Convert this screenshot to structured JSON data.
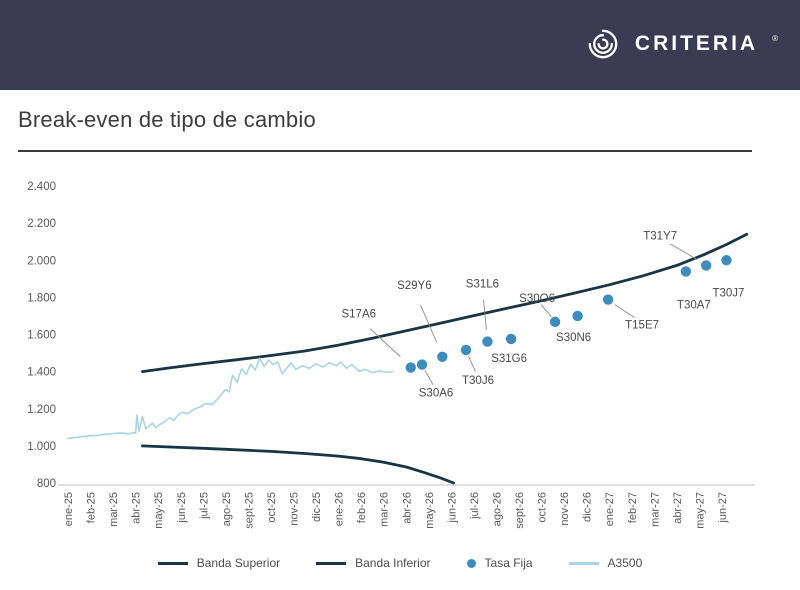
{
  "header": {
    "brand": "CRITERIA",
    "brand_mark": "®"
  },
  "theme": {
    "header_bg": "#3b3b54",
    "title_color": "#3d3d3d",
    "divider_color": "#3a3a3a",
    "axis_label_color": "#595959",
    "annotation_color": "#4a4a4a",
    "legend_text_color": "#4c4c4c"
  },
  "chart_data": {
    "type": "line",
    "title": "Break-even de tipo de cambio",
    "ylim": [
      800,
      2400
    ],
    "ytick_step": 200,
    "grid": false,
    "legend_position": "bottom",
    "x_unit": "month_index",
    "x_categories": [
      "ene-25",
      "feb-25",
      "mar-25",
      "abr-25",
      "may-25",
      "jun-25",
      "jul-25",
      "ago-25",
      "sept-25",
      "oct-25",
      "nov-25",
      "dic-25",
      "ene-26",
      "feb-26",
      "mar-26",
      "abr-26",
      "may-26",
      "jun-26",
      "jul-26",
      "ago-26",
      "sept-26",
      "oct-26",
      "nov-26",
      "dic-26",
      "ene-27",
      "feb-27",
      "mar-27",
      "abr-27",
      "may-27",
      "jun-27"
    ],
    "colors": {
      "band": "#183545",
      "dots": "#3e8cbc",
      "a3500": "#a9d4e6",
      "axis": "#c0c0c0",
      "leader": "#8c8c8c"
    },
    "series": [
      {
        "name": "Banda Superior",
        "type": "line",
        "color": "#183545",
        "width": 2.8,
        "points": [
          [
            3.3,
            1400
          ],
          [
            4.5,
            1420
          ],
          [
            6,
            1443
          ],
          [
            7.5,
            1464
          ],
          [
            9,
            1487
          ],
          [
            10.5,
            1511
          ],
          [
            12,
            1543
          ],
          [
            13.5,
            1580
          ],
          [
            15,
            1620
          ],
          [
            16.5,
            1661
          ],
          [
            18,
            1702
          ],
          [
            19.5,
            1742
          ],
          [
            21,
            1782
          ],
          [
            22.5,
            1824
          ],
          [
            24,
            1868
          ],
          [
            25.5,
            1916
          ],
          [
            27,
            1972
          ],
          [
            28.2,
            2030
          ],
          [
            29.2,
            2085
          ],
          [
            30.1,
            2140
          ]
        ]
      },
      {
        "name": "Banda Inferior",
        "type": "line",
        "color": "#183545",
        "width": 2.8,
        "points": [
          [
            3.3,
            1000
          ],
          [
            4.5,
            994
          ],
          [
            6,
            987
          ],
          [
            7.5,
            979
          ],
          [
            9,
            970
          ],
          [
            10.5,
            959
          ],
          [
            12,
            945
          ],
          [
            13,
            931
          ],
          [
            14,
            912
          ],
          [
            15,
            886
          ],
          [
            15.8,
            856
          ],
          [
            16.5,
            828
          ],
          [
            17.1,
            800
          ]
        ]
      },
      {
        "name": "Tasa Fija",
        "type": "scatter",
        "color": "#3e8cbc",
        "points": [
          {
            "label": "S17A6",
            "x": 15.2,
            "v": 1422,
            "dx": -52,
            "dy": -54,
            "leader": true
          },
          {
            "label": "S30A6",
            "x": 15.7,
            "v": 1438,
            "dx": 14,
            "dy": 28,
            "leader": true
          },
          {
            "label": "S29Y6",
            "x": 16.6,
            "v": 1480,
            "dx": -28,
            "dy": -72,
            "leader": true
          },
          {
            "label": "T30J6",
            "x": 17.65,
            "v": 1517,
            "dx": 12,
            "dy": 30,
            "leader": true
          },
          {
            "label": "S31L6",
            "x": 18.6,
            "v": 1562,
            "dx": -5,
            "dy": -58,
            "leader": true
          },
          {
            "label": "S31G6",
            "x": 19.65,
            "v": 1576,
            "dx": -2,
            "dy": 19,
            "leader": false
          },
          {
            "label": "S30O6",
            "x": 21.6,
            "v": 1668,
            "dx": -18,
            "dy": -24,
            "leader": true
          },
          {
            "label": "S30N6",
            "x": 22.6,
            "v": 1700,
            "dx": -4,
            "dy": 21,
            "leader": false
          },
          {
            "label": "T15E7",
            "x": 23.95,
            "v": 1788,
            "dx": 34,
            "dy": 25,
            "leader": true
          },
          {
            "label": "T30A7",
            "x": 27.4,
            "v": 1940,
            "dx": 8,
            "dy": 33,
            "leader": false
          },
          {
            "label": "T31Y7",
            "x": 28.3,
            "v": 1972,
            "dx": -46,
            "dy": -30,
            "leader": true
          },
          {
            "label": "T30J7",
            "x": 29.2,
            "v": 2000,
            "dx": 2,
            "dy": 32,
            "leader": false
          }
        ]
      },
      {
        "name": "A3500",
        "type": "line",
        "color": "#a9d4e6",
        "width": 1.6,
        "points": [
          [
            0,
            1040
          ],
          [
            0.4,
            1046
          ],
          [
            0.8,
            1052
          ],
          [
            1.2,
            1056
          ],
          [
            1.6,
            1062
          ],
          [
            2.0,
            1066
          ],
          [
            2.4,
            1070
          ],
          [
            2.7,
            1064
          ],
          [
            2.9,
            1072
          ],
          [
            3.0,
            1068
          ],
          [
            3.05,
            1165
          ],
          [
            3.15,
            1080
          ],
          [
            3.3,
            1158
          ],
          [
            3.45,
            1092
          ],
          [
            3.6,
            1108
          ],
          [
            3.75,
            1122
          ],
          [
            3.9,
            1098
          ],
          [
            4.1,
            1118
          ],
          [
            4.3,
            1132
          ],
          [
            4.5,
            1152
          ],
          [
            4.7,
            1138
          ],
          [
            4.9,
            1168
          ],
          [
            5.1,
            1182
          ],
          [
            5.3,
            1172
          ],
          [
            5.6,
            1198
          ],
          [
            5.9,
            1212
          ],
          [
            6.1,
            1228
          ],
          [
            6.4,
            1222
          ],
          [
            6.7,
            1262
          ],
          [
            7.0,
            1305
          ],
          [
            7.15,
            1290
          ],
          [
            7.3,
            1382
          ],
          [
            7.5,
            1342
          ],
          [
            7.7,
            1415
          ],
          [
            7.9,
            1385
          ],
          [
            8.1,
            1440
          ],
          [
            8.3,
            1408
          ],
          [
            8.5,
            1472
          ],
          [
            8.7,
            1428
          ],
          [
            8.9,
            1462
          ],
          [
            9.1,
            1438
          ],
          [
            9.3,
            1452
          ],
          [
            9.5,
            1388
          ],
          [
            9.7,
            1418
          ],
          [
            9.9,
            1448
          ],
          [
            10.1,
            1412
          ],
          [
            10.4,
            1432
          ],
          [
            10.7,
            1418
          ],
          [
            11.0,
            1442
          ],
          [
            11.3,
            1425
          ],
          [
            11.6,
            1448
          ],
          [
            11.9,
            1432
          ],
          [
            12.1,
            1452
          ],
          [
            12.35,
            1418
          ],
          [
            12.6,
            1438
          ],
          [
            12.9,
            1402
          ],
          [
            13.2,
            1412
          ],
          [
            13.5,
            1394
          ],
          [
            13.8,
            1404
          ],
          [
            14.1,
            1396
          ],
          [
            14.4,
            1400
          ]
        ]
      }
    ]
  }
}
